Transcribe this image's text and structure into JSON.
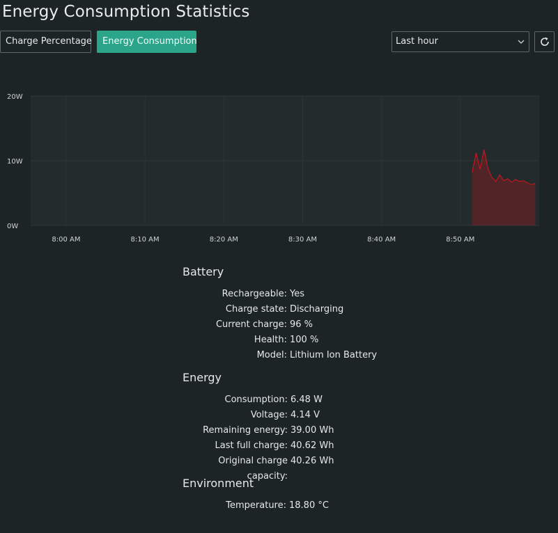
{
  "title": "Energy Consumption Statistics",
  "tabs": [
    {
      "label": "Charge Percentage",
      "active": false
    },
    {
      "label": "Energy Consumption",
      "active": true
    }
  ],
  "range": {
    "selected": "Last hour"
  },
  "icons": {
    "select": "chevron-down-icon",
    "refresh": "refresh-icon"
  },
  "colors": {
    "accent": "#2aa58a",
    "series": "#c4161c",
    "background": "#1d2426"
  },
  "chart_data": {
    "type": "area",
    "xlabel": "",
    "ylabel": "",
    "y_unit": "W",
    "ylim": [
      0,
      20
    ],
    "yticks": [
      "0W",
      "10W",
      "20W"
    ],
    "xticks": [
      "8:00 AM",
      "8:10 AM",
      "8:20 AM",
      "8:30 AM",
      "8:40 AM",
      "8:50 AM"
    ],
    "grid": true,
    "series": [
      {
        "color": "#c4161c",
        "x": [
          "8:51:30",
          "8:52:00",
          "8:52:30",
          "8:53:00",
          "8:53:30",
          "8:54:00",
          "8:54:30",
          "8:55:00",
          "8:55:30",
          "8:56:00",
          "8:56:30",
          "8:57:00",
          "8:57:30",
          "8:58:00",
          "8:58:30",
          "8:59:00",
          "8:59:30"
        ],
        "values": [
          8.2,
          11.2,
          8.7,
          11.7,
          8.8,
          7.4,
          6.8,
          7.8,
          6.9,
          7.2,
          6.7,
          7.1,
          6.8,
          6.9,
          6.6,
          6.3,
          6.5
        ]
      }
    ]
  },
  "battery": {
    "title": "Battery",
    "rows": [
      {
        "label": "Rechargeable:",
        "value": "Yes"
      },
      {
        "label": "Charge state:",
        "value": "Discharging"
      },
      {
        "label": "Current charge:",
        "value": "96 %"
      },
      {
        "label": "Health:",
        "value": "100 %"
      },
      {
        "label": "Model:",
        "value": "Lithium Ion Battery"
      }
    ]
  },
  "energy": {
    "title": "Energy",
    "rows": [
      {
        "label": "Consumption:",
        "value": "6.48 W"
      },
      {
        "label": "Voltage:",
        "value": "4.14 V"
      },
      {
        "label": "Remaining energy:",
        "value": "39.00 Wh"
      },
      {
        "label": "Last full charge:",
        "value": "40.62 Wh"
      },
      {
        "label": "Original charge capacity:",
        "value": "40.26 Wh"
      }
    ]
  },
  "environment": {
    "title": "Environment",
    "rows": [
      {
        "label": "Temperature:",
        "value": "18.80 °C"
      }
    ]
  }
}
